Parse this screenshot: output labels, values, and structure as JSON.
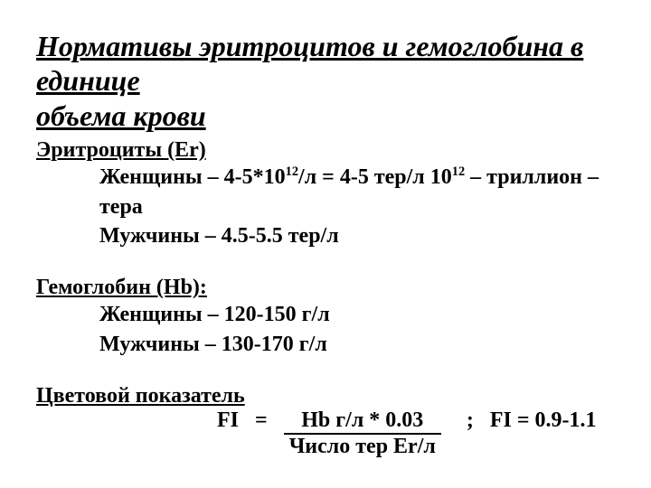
{
  "title_line1": "Нормативы эритроцитов и гемоглобина в единице",
  "title_line2": "объема крови",
  "er": {
    "header": "Эритроциты (Er)",
    "women_prefix": "Женщины – 4-5*10",
    "women_sup": "12",
    "women_mid": "/л = 4-5 тер/л  10",
    "women_sup2": "12",
    "women_suffix": " – триллион – тера",
    "men": "Мужчины – 4.5-5.5 тер/л"
  },
  "hb": {
    "header": "Гемоглобин (Hb):",
    "women": "Женщины – 120-150 г/л",
    "men": "Мужчины – 130-170 г/л"
  },
  "color_index": {
    "header": "Цветовой показатель",
    "fi_eq": "FI   =   ",
    "numerator": "Hb г/л * 0.03",
    "denominator": "Число тер Er/л",
    "range": ";   FI = 0.9-1.1"
  },
  "colors": {
    "text": "#000000",
    "background": "#ffffff"
  },
  "typography": {
    "title_fontsize": 32,
    "body_fontsize": 24,
    "font_family": "Times New Roman",
    "weight": "bold"
  }
}
